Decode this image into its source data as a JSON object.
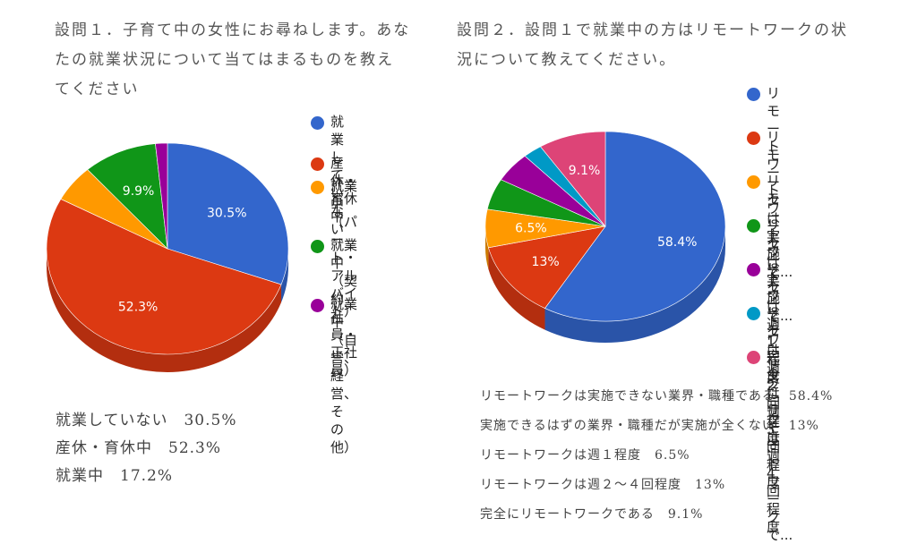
{
  "chart_data": [
    {
      "type": "pie",
      "title": "設問１．子育て中の女性にお尋ねします。あなたの就業状況について当てはまるものを教えてください",
      "title_lines": [
        "設問１．子育て中の女性にお尋ねします。あな",
        "たの就業状況について当てはまるものを教え",
        "てください"
      ],
      "legend_position": "right",
      "slices": [
        {
          "name": "就業していない",
          "legend": "就業していな\nい",
          "value": 30.5,
          "label": "30.5%",
          "color": "#3366cc",
          "side": "#2a54a8"
        },
        {
          "name": "産休・育休中",
          "legend": "産休・育休中",
          "value": 52.3,
          "label": "52.3%",
          "color": "#dc3912",
          "side": "#b32e0f"
        },
        {
          "name": "就業中（パート・アルバイト）",
          "legend": "就業中（パー\nト・アルバイ\nト）",
          "value": 5.7,
          "label": "",
          "color": "#ff9900",
          "side": "#cc7a00"
        },
        {
          "name": "就業中（契約社員・正社員）",
          "legend": "就業中（契約\n社員・正社\n員）",
          "value": 9.9,
          "label": "9.9%",
          "color": "#109618",
          "side": "#0c7613"
        },
        {
          "name": "就業中（自営、経営、その他）",
          "legend": "就業中（自\n営、経営、そ\nの他）",
          "value": 1.6,
          "label": "",
          "color": "#990099",
          "side": "#7a007a"
        }
      ],
      "summary": [
        "就業していない　30.5%",
        "産休・育休中　52.3%",
        "就業中　17.2%"
      ]
    },
    {
      "type": "pie",
      "title": "設問２．設問１で就業中の方はリモートワークの状況について教えてください。",
      "title_lines": [
        "設問２．設問１で就業中の方はリモートワークの状",
        "況について教えてください。"
      ],
      "legend_position": "right",
      "slices": [
        {
          "name": "リモートワークは実施できない業界・職種である",
          "legend": "リモートワー\nクは実施で...",
          "value": 58.4,
          "label": "58.4%",
          "color": "#3366cc",
          "side": "#2a54a8"
        },
        {
          "name": "実施できるはずの業界・職種だが実施が全くない",
          "legend": "リモートワー\nクは実施で...",
          "value": 13,
          "label": "13%",
          "color": "#dc3912",
          "side": "#b32e0f"
        },
        {
          "name": "リモートワークは週１程度",
          "legend": "リモートワー\nクは週1程度",
          "value": 6.5,
          "label": "6.5%",
          "color": "#ff9900",
          "side": "#cc7a00"
        },
        {
          "name": "リモートワークは週２回程度",
          "legend": "リモートワー\nクは週2回程度",
          "value": 5.3,
          "label": "",
          "color": "#109618",
          "side": "#0c7613"
        },
        {
          "name": "リモートワークは週３回程度",
          "legend": "リモートワー\nクは週3回程度",
          "value": 5.1,
          "label": "",
          "color": "#990099",
          "side": "#7a007a"
        },
        {
          "name": "リモートワークは週４回程度",
          "legend": "リモートワー\nクは週4回程度",
          "value": 2.6,
          "label": "",
          "color": "#0099c6",
          "side": "#007a9e"
        },
        {
          "name": "完全にリモートワークである",
          "legend": "完全にリモー\nトワークで...",
          "value": 9.1,
          "label": "9.1%",
          "color": "#dd4477",
          "side": "#b3375f"
        }
      ],
      "summary": [
        "リモートワークは実施できない業界・職種である　58.4%",
        "実施できるはずの業界・職種だが実施が全くない　13%",
        "リモートワークは週１程度　6.5%",
        "リモートワークは週２〜４回程度　13%",
        "完全にリモートワークである　9.1%"
      ]
    }
  ]
}
